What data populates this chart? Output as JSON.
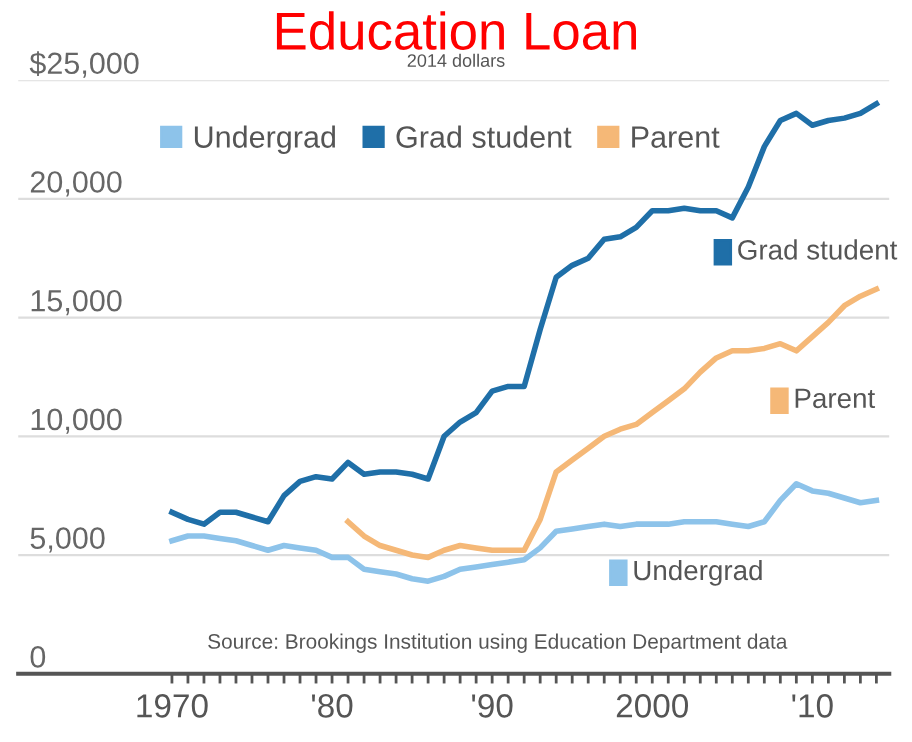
{
  "chart_data": {
    "type": "line",
    "title": "Education Loan",
    "subtitle": "2014 dollars",
    "x": [
      1970,
      1971,
      1972,
      1973,
      1974,
      1975,
      1976,
      1977,
      1978,
      1979,
      1980,
      1981,
      1982,
      1983,
      1984,
      1985,
      1986,
      1987,
      1988,
      1989,
      1990,
      1991,
      1992,
      1993,
      1994,
      1995,
      1996,
      1997,
      1998,
      1999,
      2000,
      2001,
      2002,
      2003,
      2004,
      2005,
      2006,
      2007,
      2008,
      2009,
      2010,
      2011,
      2012,
      2013,
      2014
    ],
    "series": [
      {
        "name": "Undergrad",
        "color": "#8dc3ea",
        "values": [
          5600,
          5800,
          5800,
          5700,
          5600,
          5400,
          5200,
          5400,
          5300,
          5200,
          4900,
          4900,
          4400,
          4300,
          4200,
          4000,
          3900,
          4100,
          4400,
          4500,
          4600,
          4700,
          4800,
          5300,
          6000,
          6100,
          6200,
          6300,
          6200,
          6300,
          6300,
          6300,
          6400,
          6400,
          6400,
          6300,
          6200,
          6400,
          7300,
          8000,
          7700,
          7600,
          7400,
          7200,
          7300
        ]
      },
      {
        "name": "Grad student",
        "color": "#1f6fa8",
        "values": [
          6800,
          6500,
          6300,
          6800,
          6800,
          6600,
          6400,
          7500,
          8100,
          8300,
          8200,
          8900,
          8400,
          8500,
          8500,
          8400,
          8200,
          10000,
          10600,
          11000,
          11900,
          12100,
          12100,
          14500,
          16700,
          17200,
          17500,
          18300,
          18400,
          18800,
          19500,
          19500,
          19600,
          19500,
          19500,
          19200,
          20500,
          22200,
          23300,
          23600,
          23100,
          23300,
          23400,
          23600,
          24000
        ]
      },
      {
        "name": "Parent",
        "color": "#f5b877",
        "values": [
          null,
          null,
          null,
          null,
          null,
          null,
          null,
          null,
          null,
          null,
          null,
          6400,
          5800,
          5400,
          5200,
          5000,
          4900,
          5200,
          5400,
          5300,
          5200,
          5200,
          5200,
          6500,
          8500,
          9000,
          9500,
          10000,
          10300,
          10500,
          11000,
          11500,
          12000,
          12700,
          13300,
          13600,
          13600,
          13700,
          13900,
          13600,
          14200,
          14800,
          15500,
          15900,
          16200
        ]
      }
    ],
    "xlim": [
      1960.4,
      2014.8
    ],
    "ylim": [
      0,
      25000
    ],
    "xticks": [
      {
        "value": 1970,
        "label": "1970"
      },
      {
        "value": 1971,
        "label": null
      },
      {
        "value": 1972,
        "label": null
      },
      {
        "value": 1973,
        "label": null
      },
      {
        "value": 1974,
        "label": null
      },
      {
        "value": 1975,
        "label": null
      },
      {
        "value": 1976,
        "label": null
      },
      {
        "value": 1977,
        "label": null
      },
      {
        "value": 1978,
        "label": null
      },
      {
        "value": 1979,
        "label": null
      },
      {
        "value": 1980,
        "label": "'80"
      },
      {
        "value": 1981,
        "label": null
      },
      {
        "value": 1982,
        "label": null
      },
      {
        "value": 1983,
        "label": null
      },
      {
        "value": 1984,
        "label": null
      },
      {
        "value": 1985,
        "label": null
      },
      {
        "value": 1986,
        "label": null
      },
      {
        "value": 1987,
        "label": null
      },
      {
        "value": 1988,
        "label": null
      },
      {
        "value": 1989,
        "label": null
      },
      {
        "value": 1990,
        "label": "'90"
      },
      {
        "value": 1991,
        "label": null
      },
      {
        "value": 1992,
        "label": null
      },
      {
        "value": 1993,
        "label": null
      },
      {
        "value": 1994,
        "label": null
      },
      {
        "value": 1995,
        "label": null
      },
      {
        "value": 1996,
        "label": null
      },
      {
        "value": 1997,
        "label": null
      },
      {
        "value": 1998,
        "label": null
      },
      {
        "value": 1999,
        "label": null
      },
      {
        "value": 2000,
        "label": "2000"
      },
      {
        "value": 2001,
        "label": null
      },
      {
        "value": 2002,
        "label": null
      },
      {
        "value": 2003,
        "label": null
      },
      {
        "value": 2004,
        "label": null
      },
      {
        "value": 2005,
        "label": null
      },
      {
        "value": 2006,
        "label": null
      },
      {
        "value": 2007,
        "label": null
      },
      {
        "value": 2008,
        "label": null
      },
      {
        "value": 2009,
        "label": null
      },
      {
        "value": 2010,
        "label": "'10"
      },
      {
        "value": 2011,
        "label": null
      },
      {
        "value": 2012,
        "label": null
      },
      {
        "value": 2013,
        "label": null
      },
      {
        "value": 2014,
        "label": null
      }
    ],
    "yticks": [
      {
        "value": 0,
        "label": "0"
      },
      {
        "value": 5000,
        "label": "5,000"
      },
      {
        "value": 10000,
        "label": "10,000"
      },
      {
        "value": 15000,
        "label": "15,000"
      },
      {
        "value": 20000,
        "label": "20,000"
      },
      {
        "value": 25000,
        "label": "$25,000"
      }
    ],
    "grid": "y",
    "legend": "top left",
    "marker": "none",
    "line_style": "solid",
    "annotations": [
      "Grad student",
      "Parent",
      "Undergrad",
      "Source: Brookings Institution using Education Department data"
    ]
  }
}
